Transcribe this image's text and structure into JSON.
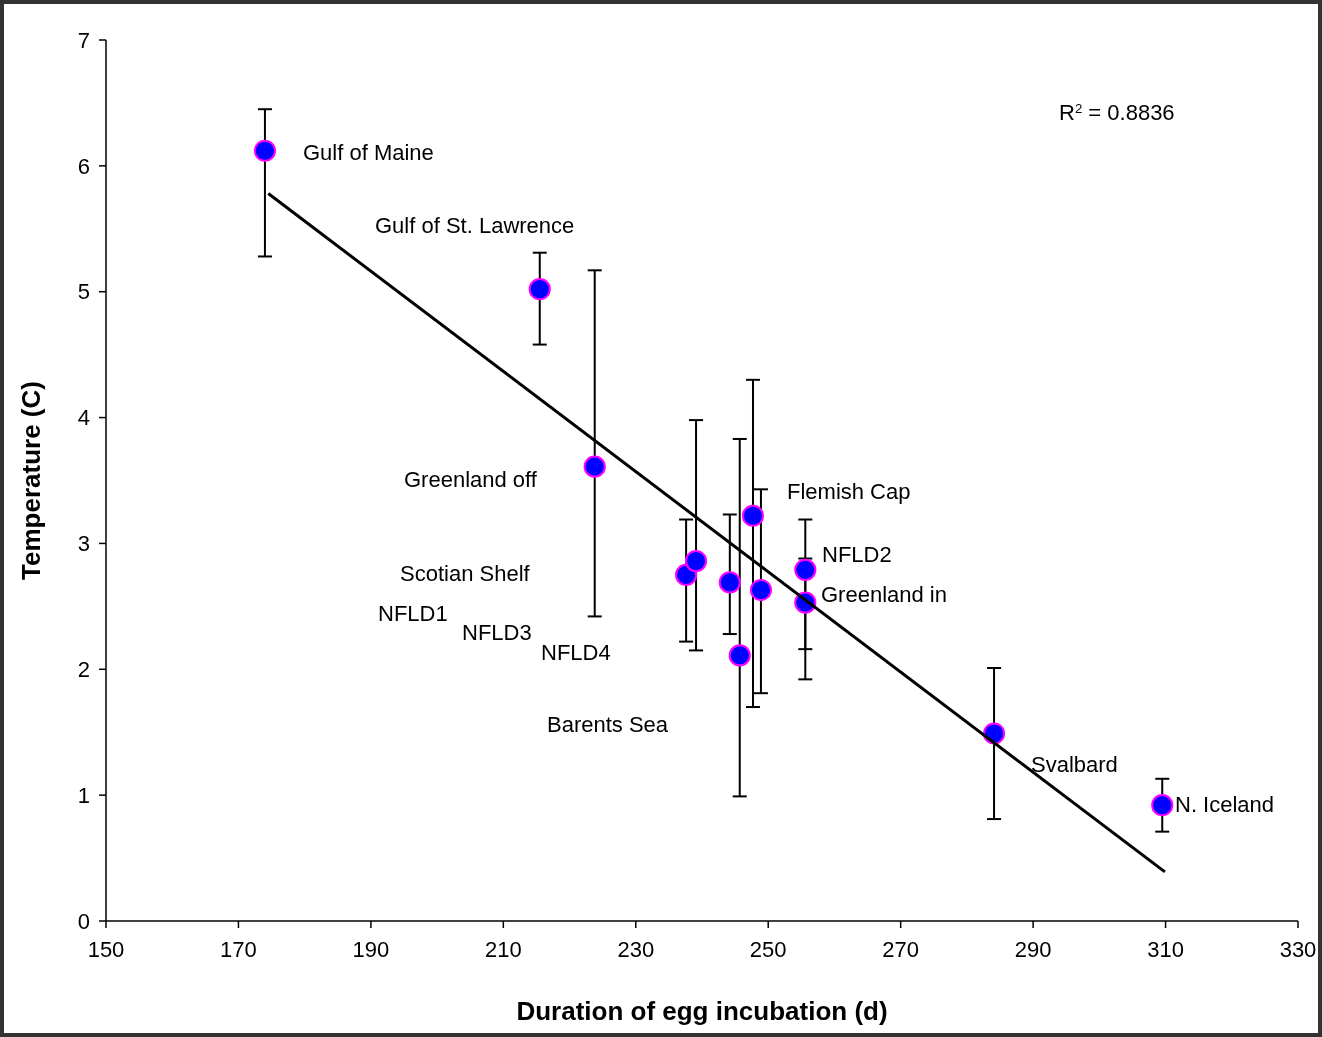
{
  "chart_data": {
    "type": "scatter",
    "xlabel": "Duration of egg incubation (d)",
    "ylabel": "Temperature (C)",
    "xlim": [
      150,
      330
    ],
    "xticks": [
      150,
      170,
      190,
      210,
      230,
      250,
      270,
      290,
      310,
      330
    ],
    "ylim": [
      0,
      7
    ],
    "yticks": [
      0,
      1,
      2,
      3,
      4,
      5,
      6,
      7
    ],
    "grid": false,
    "series": [
      {
        "marker": "circle",
        "color": "#0000ff",
        "x": [
          174.0,
          215.5,
          223.8,
          237.6,
          239.1,
          244.2,
          245.7,
          247.7,
          248.9,
          255.6,
          255.6,
          284.1,
          309.5
        ],
        "values": [
          6.12,
          5.02,
          3.61,
          2.75,
          2.86,
          2.69,
          2.11,
          3.22,
          2.63,
          2.79,
          2.53,
          1.49,
          0.92
        ],
        "errors": [
          [
            5.28,
            6.45
          ],
          [
            4.58,
            5.31
          ],
          [
            2.42,
            5.17
          ],
          [
            2.22,
            3.19
          ],
          [
            2.15,
            3.98
          ],
          [
            2.28,
            3.23
          ],
          [
            0.99,
            3.83
          ],
          [
            1.7,
            4.3
          ],
          [
            1.81,
            3.43
          ],
          [
            1.92,
            3.19
          ],
          [
            2.16,
            2.88
          ],
          [
            0.81,
            2.01
          ],
          [
            0.71,
            1.13
          ]
        ]
      },
      {
        "type": "line",
        "color": "#000000",
        "x": [
          174.5,
          309.9
        ],
        "values": [
          5.78,
          0.39
        ],
        "line_style": "solid"
      }
    ],
    "annotations": [
      "Gulf of Maine",
      "Gulf of St. Lawrence",
      "Greenland off",
      "Flemish Cap",
      "Scotian Shelf",
      "NFLD2",
      "Greenland in",
      "NFLD1",
      "NFLD3",
      "NFLD4",
      "Barents Sea",
      "Svalbard",
      "N. Iceland",
      "R$^{2}$ = 0.8836"
    ]
  }
}
